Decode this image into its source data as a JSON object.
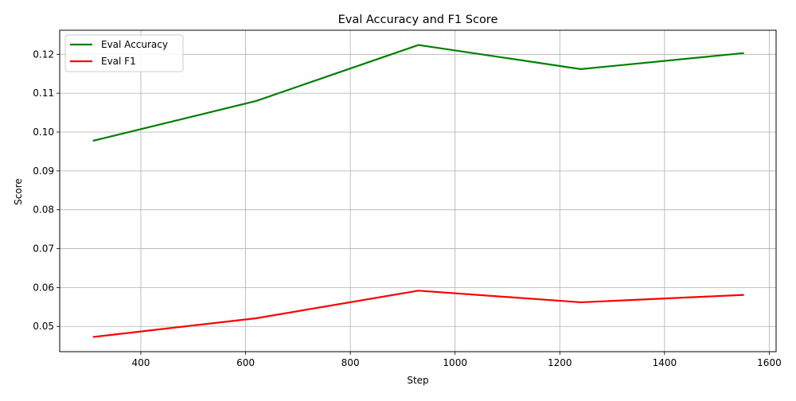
{
  "chart_data": {
    "type": "line",
    "title": "Eval Accuracy and F1 Score",
    "xlabel": "Step",
    "ylabel": "Score",
    "xlim": [
      245,
      1613
    ],
    "ylim": [
      0.0435,
      0.1262
    ],
    "x_ticks": [
      400,
      600,
      800,
      1000,
      1200,
      1400,
      1600
    ],
    "y_ticks": [
      0.05,
      0.06,
      0.07,
      0.08,
      0.09,
      0.1,
      0.11,
      0.12
    ],
    "x_tick_labels": [
      "400",
      "600",
      "800",
      "1000",
      "1200",
      "1400",
      "1600"
    ],
    "y_tick_labels": [
      "0.05",
      "0.06",
      "0.07",
      "0.08",
      "0.09",
      "0.10",
      "0.11",
      "0.12"
    ],
    "grid": true,
    "legend_position": "upper-left",
    "x": [
      310,
      620,
      930,
      1240,
      1550
    ],
    "series": [
      {
        "name": "Eval Accuracy",
        "color": "#008000",
        "values": [
          0.0978,
          0.108,
          0.1224,
          0.1162,
          0.1203
        ]
      },
      {
        "name": "Eval F1",
        "color": "#ff0000",
        "values": [
          0.0473,
          0.0521,
          0.0592,
          0.0562,
          0.0581
        ]
      }
    ]
  }
}
